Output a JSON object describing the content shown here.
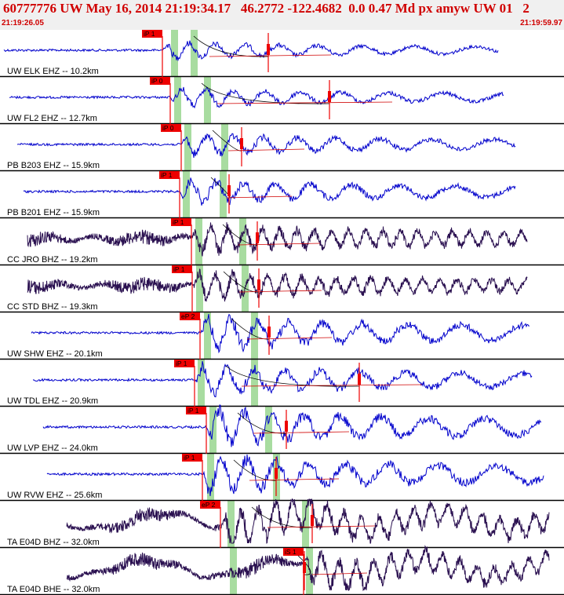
{
  "header": {
    "title": "60777776 UW May 16, 2014 21:19:34.17   46.2772 -122.4682  0.0 0.47 Md px amyw UW 01   2",
    "start_time": "21:19:26.05",
    "end_time": "21:19:59.97"
  },
  "colors": {
    "header_text": "#d00000",
    "blue_trace": "#0000cc",
    "dark_trace": "#2a1050",
    "pick_box": "#ee0000",
    "shade": "#a8dca0"
  },
  "traces": [
    {
      "label": "UW ELK EHZ -- 10.2km",
      "pick": "iP 1"
    },
    {
      "label": "UW FL2 EHZ -- 12.7km",
      "pick": "iP 0"
    },
    {
      "label": "PB B203 EHZ -- 15.9km",
      "pick": "iP 0"
    },
    {
      "label": "PB B201 EHZ -- 15.9km",
      "pick": "iP 1"
    },
    {
      "label": "CC JRO BHZ -- 19.2km",
      "pick": "iP 1"
    },
    {
      "label": "CC STD BHZ -- 19.3km",
      "pick": "iP 1"
    },
    {
      "label": "UW SHW EHZ -- 20.1km",
      "pick": "eP 2"
    },
    {
      "label": "UW TDL EHZ -- 20.9km",
      "pick": "iP 1"
    },
    {
      "label": "UW LVP EHZ -- 24.0km",
      "pick": "iP 1"
    },
    {
      "label": "UW RVW EHZ -- 25.6km",
      "pick": "iP 1"
    },
    {
      "label": "TA E04D BHZ -- 32.0km",
      "pick": "eP 2"
    },
    {
      "label": "TA E04D BHE -- 32.0km",
      "pick": "iS 1"
    }
  ]
}
